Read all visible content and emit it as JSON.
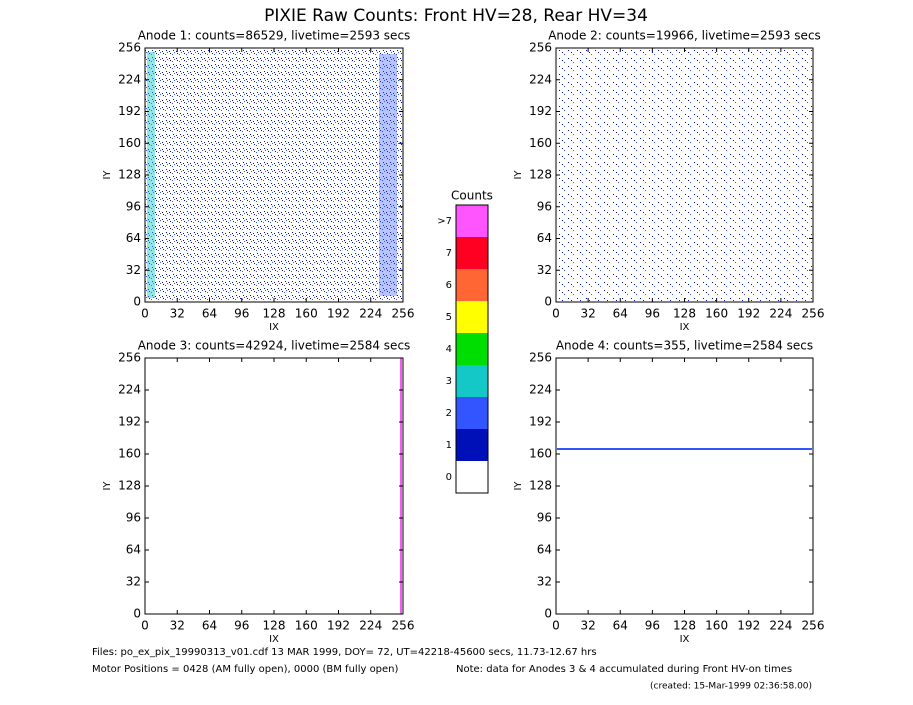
{
  "title": "PIXIE Raw Counts:  Front HV=28, Rear HV=34",
  "chart_data": [
    {
      "type": "heatmap",
      "title": "Anode 1: counts=86529, livetime=2593 secs",
      "xlabel": "IX",
      "ylabel": "IY",
      "xlim": [
        0,
        256
      ],
      "ylim": [
        0,
        256
      ],
      "xticks": [
        0,
        32,
        64,
        96,
        128,
        160,
        192,
        224,
        256
      ],
      "yticks": [
        0,
        32,
        64,
        96,
        128,
        160,
        192,
        224,
        256
      ]
    },
    {
      "type": "heatmap",
      "title": "Anode 2: counts=19966, livetime=2593 secs",
      "xlabel": "IX",
      "ylabel": "IY",
      "xlim": [
        0,
        256
      ],
      "ylim": [
        0,
        256
      ],
      "xticks": [
        0,
        32,
        64,
        96,
        128,
        160,
        192,
        224,
        256
      ],
      "yticks": [
        0,
        32,
        64,
        96,
        128,
        160,
        192,
        224,
        256
      ]
    },
    {
      "type": "heatmap",
      "title": "Anode 3: counts=42924, livetime=2584 secs",
      "xlabel": "IX",
      "ylabel": "IY",
      "xlim": [
        0,
        256
      ],
      "ylim": [
        0,
        256
      ],
      "xticks": [
        0,
        32,
        64,
        96,
        128,
        160,
        192,
        224,
        256
      ],
      "yticks": [
        0,
        32,
        64,
        96,
        128,
        160,
        192,
        224,
        256
      ]
    },
    {
      "type": "heatmap",
      "title": "Anode 4: counts=355, livetime=2584 secs",
      "xlabel": "IX",
      "ylabel": "IY",
      "xlim": [
        0,
        256
      ],
      "ylim": [
        0,
        256
      ],
      "xticks": [
        0,
        32,
        64,
        96,
        128,
        160,
        192,
        224,
        256
      ],
      "yticks": [
        0,
        32,
        64,
        96,
        128,
        160,
        192,
        224,
        256
      ]
    }
  ],
  "colorbar": {
    "title": "Counts",
    "bins": [
      {
        "label": 0,
        "color": "#ffffff"
      },
      {
        "label": 1,
        "color": "#0010b8"
      },
      {
        "label": 2,
        "color": "#3355ff"
      },
      {
        "label": 3,
        "color": "#14c8c8"
      },
      {
        "label": 4,
        "color": "#00dd00"
      },
      {
        "label": 5,
        "color": "#ffff00"
      },
      {
        "label": 6,
        "color": "#ff6633"
      },
      {
        "label": 7,
        "color": "#ff0022"
      },
      {
        "label": ">7",
        "color": "#ff55ff"
      }
    ]
  },
  "footer": {
    "files": "Files: po_ex_pix_19990313_v01.cdf    13 MAR 1999, DOY= 72, UT=42218-45600 secs, 11.73-12.67 hrs",
    "motor": "Motor Positions = 0428 (AM fully open), 0000 (BM fully open)",
    "note": "Note: data for Anodes 3 & 4 accumulated during Front HV-on times",
    "created": "(created: 15-Mar-1999 02:36:58.00)"
  }
}
